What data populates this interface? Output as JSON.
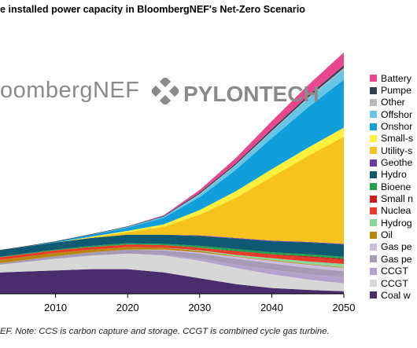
{
  "title": "e installed power capacity in BloombergNEF's Net-Zero Scenario",
  "footnote": "EF. Note: CCS is carbon capture and storage. CCGT is combined cycle gas turbine.",
  "watermarks": {
    "bnef": "oombergNEF",
    "pylontech": "PYLONTECH"
  },
  "legend": [
    {
      "label": "Battery",
      "color": "#e8478f"
    },
    {
      "label": "Pumpe",
      "color": "#2f3f52"
    },
    {
      "label": "Other",
      "color": "#b9b9b9"
    },
    {
      "label": "Offshor",
      "color": "#66c6e6"
    },
    {
      "label": "Onshor",
      "color": "#119fdb"
    },
    {
      "label": "Small-s",
      "color": "#fff03c"
    },
    {
      "label": "Utility-s",
      "color": "#f7c21c"
    },
    {
      "label": "Geothe",
      "color": "#6a3ea1"
    },
    {
      "label": "Hydro",
      "color": "#0e5a73"
    },
    {
      "label": "Bioene",
      "color": "#23a04a"
    },
    {
      "label": "Small n",
      "color": "#c81e1e"
    },
    {
      "label": "Nuclea",
      "color": "#ea3b2a"
    },
    {
      "label": "Hydrog",
      "color": "#8cd69c"
    },
    {
      "label": "Oil",
      "color": "#b8860b"
    },
    {
      "label": "Gas pe",
      "color": "#cbbbdc"
    },
    {
      "label": "Gas pe",
      "color": "#a59bb5"
    },
    {
      "label": "CCGT",
      "color": "#b3a3cc"
    },
    {
      "label": "CCGT",
      "color": "#d7d7d7"
    },
    {
      "label": "Coal w",
      "color": "#4a2d6d"
    }
  ],
  "chart_data": {
    "type": "area",
    "stacked": true,
    "title": "e installed power capacity in BloombergNEF's Net-Zero Scenario",
    "xlabel": "",
    "ylabel": "",
    "x": [
      2000,
      2005,
      2010,
      2015,
      2020,
      2025,
      2030,
      2035,
      2040,
      2045,
      2050
    ],
    "x_ticks": [
      2010,
      2020,
      2030,
      2040,
      2050
    ],
    "xlim": [
      2000,
      2050
    ],
    "ylim": [
      0,
      42
    ],
    "grid": false,
    "legend_position": "right",
    "series": [
      {
        "name": "Coal w",
        "color": "#4a2d6d",
        "values": [
          3.2,
          3.4,
          3.6,
          3.8,
          3.8,
          3.3,
          2.4,
          1.5,
          0.9,
          0.6,
          0.4
        ]
      },
      {
        "name": "CCGT",
        "color": "#d7d7d7",
        "values": [
          1.0,
          1.4,
          1.8,
          2.1,
          2.4,
          2.6,
          2.7,
          2.5,
          2.1,
          1.6,
          1.2
        ]
      },
      {
        "name": "CCGT",
        "color": "#b3a3cc",
        "values": [
          0.0,
          0.0,
          0.0,
          0.0,
          0.0,
          0.1,
          0.3,
          0.5,
          0.7,
          0.8,
          0.9
        ]
      },
      {
        "name": "Gas pe",
        "color": "#a59bb5",
        "values": [
          0.2,
          0.3,
          0.4,
          0.5,
          0.6,
          0.7,
          0.8,
          0.9,
          1.0,
          1.0,
          1.0
        ]
      },
      {
        "name": "Gas pe",
        "color": "#cbbbdc",
        "values": [
          0.0,
          0.0,
          0.0,
          0.0,
          0.0,
          0.1,
          0.2,
          0.3,
          0.4,
          0.5,
          0.5
        ]
      },
      {
        "name": "Oil",
        "color": "#b8860b",
        "values": [
          0.5,
          0.5,
          0.5,
          0.4,
          0.4,
          0.3,
          0.2,
          0.1,
          0.1,
          0.1,
          0.1
        ]
      },
      {
        "name": "Hydrog",
        "color": "#8cd69c",
        "values": [
          0.0,
          0.0,
          0.0,
          0.0,
          0.0,
          0.0,
          0.1,
          0.2,
          0.3,
          0.4,
          0.5
        ]
      },
      {
        "name": "Nuclea",
        "color": "#ea3b2a",
        "values": [
          0.4,
          0.4,
          0.4,
          0.4,
          0.4,
          0.4,
          0.4,
          0.5,
          0.5,
          0.6,
          0.6
        ]
      },
      {
        "name": "Small n",
        "color": "#c81e1e",
        "values": [
          0.0,
          0.0,
          0.0,
          0.0,
          0.0,
          0.0,
          0.0,
          0.1,
          0.1,
          0.2,
          0.2
        ]
      },
      {
        "name": "Bioene",
        "color": "#23a04a",
        "values": [
          0.1,
          0.1,
          0.1,
          0.2,
          0.2,
          0.2,
          0.3,
          0.3,
          0.3,
          0.3,
          0.3
        ]
      },
      {
        "name": "Hydro",
        "color": "#0e5a73",
        "values": [
          0.9,
          1.0,
          1.1,
          1.2,
          1.3,
          1.4,
          1.5,
          1.6,
          1.7,
          1.8,
          1.9
        ]
      },
      {
        "name": "Geothe",
        "color": "#6a3ea1",
        "values": [
          0.0,
          0.0,
          0.0,
          0.0,
          0.0,
          0.0,
          0.1,
          0.1,
          0.1,
          0.1,
          0.1
        ]
      },
      {
        "name": "Utility-s",
        "color": "#f7c21c",
        "values": [
          0.0,
          0.0,
          0.0,
          0.1,
          0.4,
          1.2,
          3.2,
          6.2,
          9.8,
          13.2,
          16.5
        ]
      },
      {
        "name": "Small-s",
        "color": "#fff03c",
        "values": [
          0.0,
          0.0,
          0.0,
          0.1,
          0.2,
          0.4,
          0.7,
          1.0,
          1.2,
          1.3,
          1.4
        ]
      },
      {
        "name": "Onshor",
        "color": "#119fdb",
        "values": [
          0.0,
          0.0,
          0.1,
          0.3,
          0.5,
          1.0,
          2.0,
          3.3,
          4.8,
          6.2,
          7.4
        ]
      },
      {
        "name": "Offshor",
        "color": "#66c6e6",
        "values": [
          0.0,
          0.0,
          0.0,
          0.0,
          0.1,
          0.2,
          0.4,
          0.7,
          1.0,
          1.3,
          1.6
        ]
      },
      {
        "name": "Other",
        "color": "#b9b9b9",
        "values": [
          0.0,
          0.0,
          0.0,
          0.0,
          0.0,
          0.0,
          0.1,
          0.1,
          0.1,
          0.2,
          0.2
        ]
      },
      {
        "name": "Pumpe",
        "color": "#2f3f52",
        "values": [
          0.1,
          0.1,
          0.1,
          0.1,
          0.1,
          0.1,
          0.2,
          0.2,
          0.3,
          0.3,
          0.4
        ]
      },
      {
        "name": "Battery",
        "color": "#e8478f",
        "values": [
          0.0,
          0.0,
          0.0,
          0.0,
          0.0,
          0.1,
          0.4,
          0.8,
          1.2,
          1.6,
          2.0
        ]
      }
    ]
  }
}
